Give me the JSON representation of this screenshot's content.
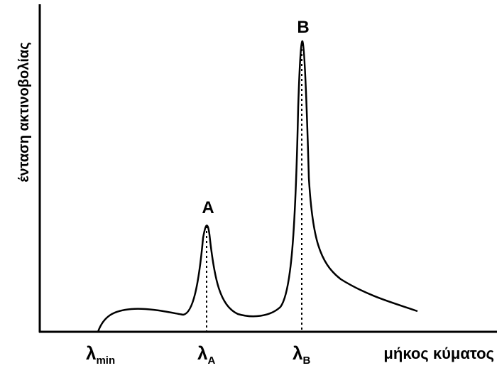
{
  "diagram": {
    "y_axis_label": "ένταση ακτινοβολίας",
    "x_axis_label": "μήκος κύματος",
    "peaks": [
      {
        "label": "A"
      },
      {
        "label": "B"
      }
    ],
    "wavelength_marks": [
      {
        "symbol": "λ",
        "subscript": "min"
      },
      {
        "symbol": "λ",
        "subscript": "A"
      },
      {
        "symbol": "λ",
        "subscript": "B"
      }
    ]
  }
}
